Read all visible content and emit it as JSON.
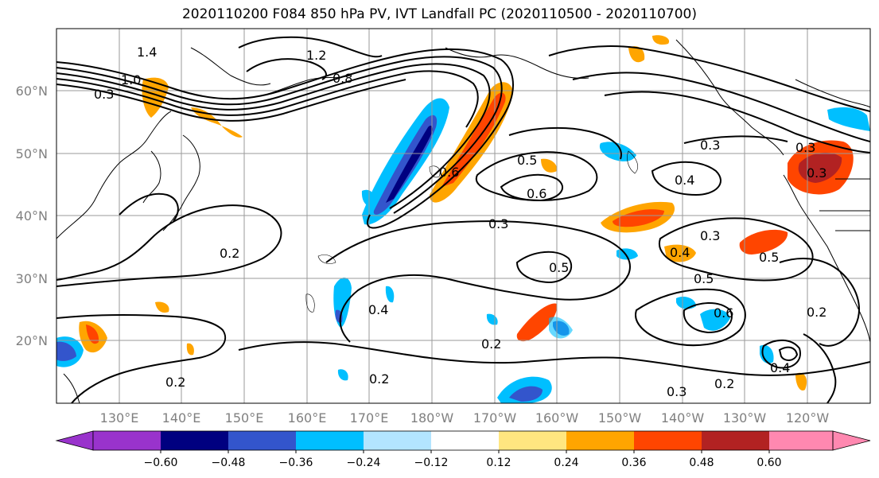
{
  "title": "2020110200 F084 850 hPa PV, IVT Landfall PC (2020110500 - 2020110700)",
  "map": {
    "lat_labels": [
      "60°N",
      "50°N",
      "40°N",
      "30°N",
      "20°N"
    ],
    "lon_labels": [
      "130°E",
      "140°E",
      "150°E",
      "160°E",
      "170°E",
      "180°W",
      "170°W",
      "160°W",
      "150°W",
      "140°W",
      "130°W",
      "120°W"
    ],
    "gridlines": true,
    "contour_labels": [
      "1.4",
      "1.0",
      "0.3",
      "0.8",
      "1.2",
      "0.5",
      "0.6",
      "0.2",
      "0.3",
      "0.4",
      "0.3",
      "0.3",
      "0.4",
      "0.5",
      "0.2",
      "0.2",
      "0.4",
      "0.6",
      "0.5",
      "0.3",
      "0.2",
      "0.4",
      "0.2",
      "0.3",
      "0.2",
      "0.3",
      "0.5",
      "0.6"
    ]
  },
  "colorbar": {
    "ticks": [
      "−0.60",
      "−0.48",
      "−0.36",
      "−0.24",
      "−0.12",
      "0.12",
      "0.24",
      "0.36",
      "0.48",
      "0.60"
    ],
    "colors": [
      "#9933cc",
      "#000080",
      "#3355cc",
      "#00bfff",
      "#b3e5ff",
      "#ffffff",
      "#ffe680",
      "#ffa500",
      "#ff4500",
      "#b22222",
      "#ff88b0"
    ]
  }
}
